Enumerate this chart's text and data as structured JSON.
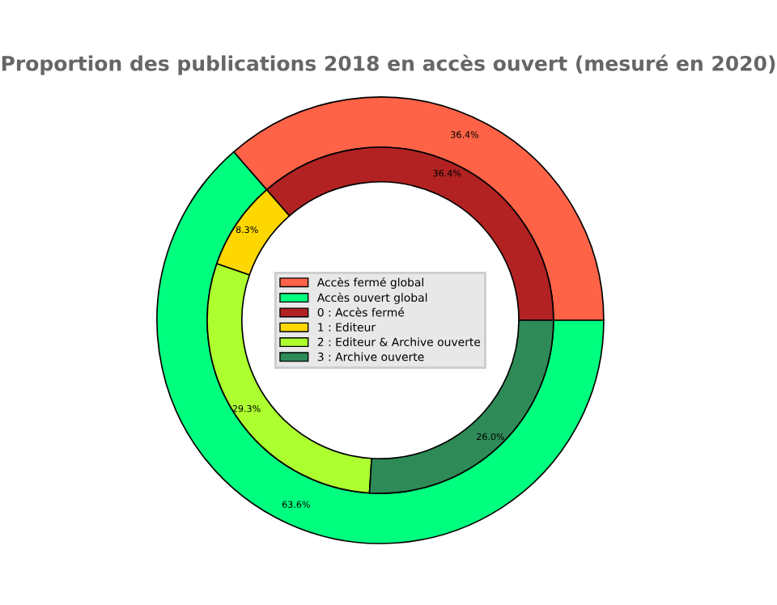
{
  "chart_data": {
    "type": "donut",
    "title": "Proportion des publications 2018 en accès ouvert (mesuré en 2020)",
    "legend": "center",
    "categories": [
      "Accès fermé global",
      "Accès ouvert global",
      "0 : Accès fermé",
      "1 : Editeur",
      "2 : Editeur & Archive ouverte",
      "3 : Archive ouverte"
    ],
    "colors": [
      "#ff6347",
      "#00ff7f",
      "#b22222",
      "#ffd700",
      "#adff2f",
      "#2e8b57"
    ],
    "series": [
      {
        "values": [
          36.4,
          63.6,
          null,
          null,
          null,
          null
        ],
        "value_labels": [
          "36.4%",
          "63.6%",
          null,
          null,
          null,
          null
        ]
      },
      {
        "values": [
          null,
          null,
          36.4,
          8.3,
          29.3,
          26.0
        ],
        "value_labels": [
          null,
          null,
          "36.4%",
          "8.3%",
          "29.3%",
          "26.0%"
        ]
      }
    ]
  }
}
